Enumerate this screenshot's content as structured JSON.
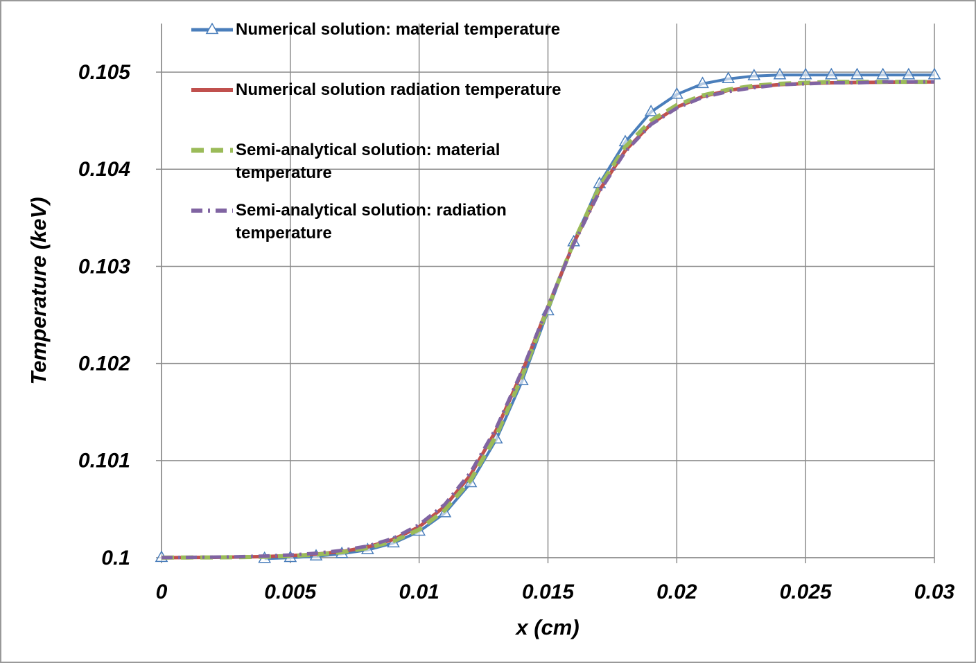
{
  "chart_data": {
    "type": "line",
    "xlabel": "x (cm)",
    "ylabel": "Temperature (keV)",
    "x": [
      0,
      0.001,
      0.002,
      0.003,
      0.004,
      0.005,
      0.006,
      0.007,
      0.008,
      0.009,
      0.01,
      0.011,
      0.012,
      0.013,
      0.014,
      0.015,
      0.016,
      0.017,
      0.018,
      0.019,
      0.02,
      0.021,
      0.022,
      0.023,
      0.024,
      0.025,
      0.026,
      0.027,
      0.028,
      0.029,
      0.03
    ],
    "series": [
      {
        "name": "Numerical solution: material temperature",
        "color": "#4a7ebb",
        "line_style": "solid",
        "marker": "triangle",
        "values": [
          0.1,
          null,
          null,
          null,
          0.09999,
          0.099999,
          0.100015,
          0.10004,
          0.10008,
          0.10015,
          0.10027,
          0.10046,
          0.10077,
          0.10122,
          0.10182,
          0.10254,
          0.10325,
          0.10385,
          0.10428,
          0.10459,
          0.10477,
          0.10488,
          0.10493,
          0.10496,
          0.10497,
          0.10497,
          0.10497,
          0.10497,
          0.10497,
          0.10497,
          0.10497
        ]
      },
      {
        "name": "Numerical solution radiation temperature",
        "color": "#c0504d",
        "line_style": "solid",
        "values": [
          0.1,
          0.100002,
          0.100004,
          0.100007,
          0.100012,
          0.100021,
          0.100037,
          0.100063,
          0.10011,
          0.100188,
          0.100318,
          0.100529,
          0.100854,
          0.101318,
          0.101914,
          0.102586,
          0.103239,
          0.103784,
          0.104192,
          0.104467,
          0.10464,
          0.104748,
          0.104812,
          0.104849,
          0.104871,
          0.104883,
          0.10489,
          0.104894,
          0.104896,
          0.104898,
          0.104899
        ]
      },
      {
        "name": "Semi-analytical solution: material temperature",
        "color": "#9bbb59",
        "line_style": "dashed",
        "values": [
          0.100001,
          0.100002,
          0.100003,
          0.100005,
          0.10001,
          0.100018,
          0.100032,
          0.100056,
          0.1001,
          0.10017,
          0.10029,
          0.10049,
          0.1008,
          0.10126,
          0.10187,
          0.10257,
          0.10325,
          0.10382,
          0.10423,
          0.1045,
          0.10466,
          0.10476,
          0.10482,
          0.10486,
          0.10488,
          0.10489,
          0.1049,
          0.1049,
          0.1049,
          0.1049,
          0.1049
        ]
      },
      {
        "name": "Semi-analytical solution: radiation temperature",
        "color": "#8064a2",
        "line_style": "dashdot",
        "values": [
          0.100001,
          0.100003,
          0.100006,
          0.10001,
          0.100017,
          0.100028,
          0.100046,
          0.100075,
          0.10012,
          0.1002,
          0.10034,
          0.10055,
          0.10088,
          0.10134,
          0.10193,
          0.10259,
          0.10323,
          0.10377,
          0.10418,
          0.10446,
          0.10463,
          0.10474,
          0.1048,
          0.10484,
          0.10487,
          0.10488,
          0.10489,
          0.10489,
          0.1049,
          0.1049,
          0.1049
        ]
      }
    ],
    "xlim": [
      0,
      0.03
    ],
    "xticks": [
      0,
      0.005,
      0.01,
      0.015,
      0.02,
      0.025,
      0.03
    ],
    "ylim": [
      0.1,
      0.1055
    ],
    "yticks": [
      0.1,
      0.101,
      0.102,
      0.103,
      0.104,
      0.105
    ],
    "grid": true,
    "legend": "upper left"
  }
}
